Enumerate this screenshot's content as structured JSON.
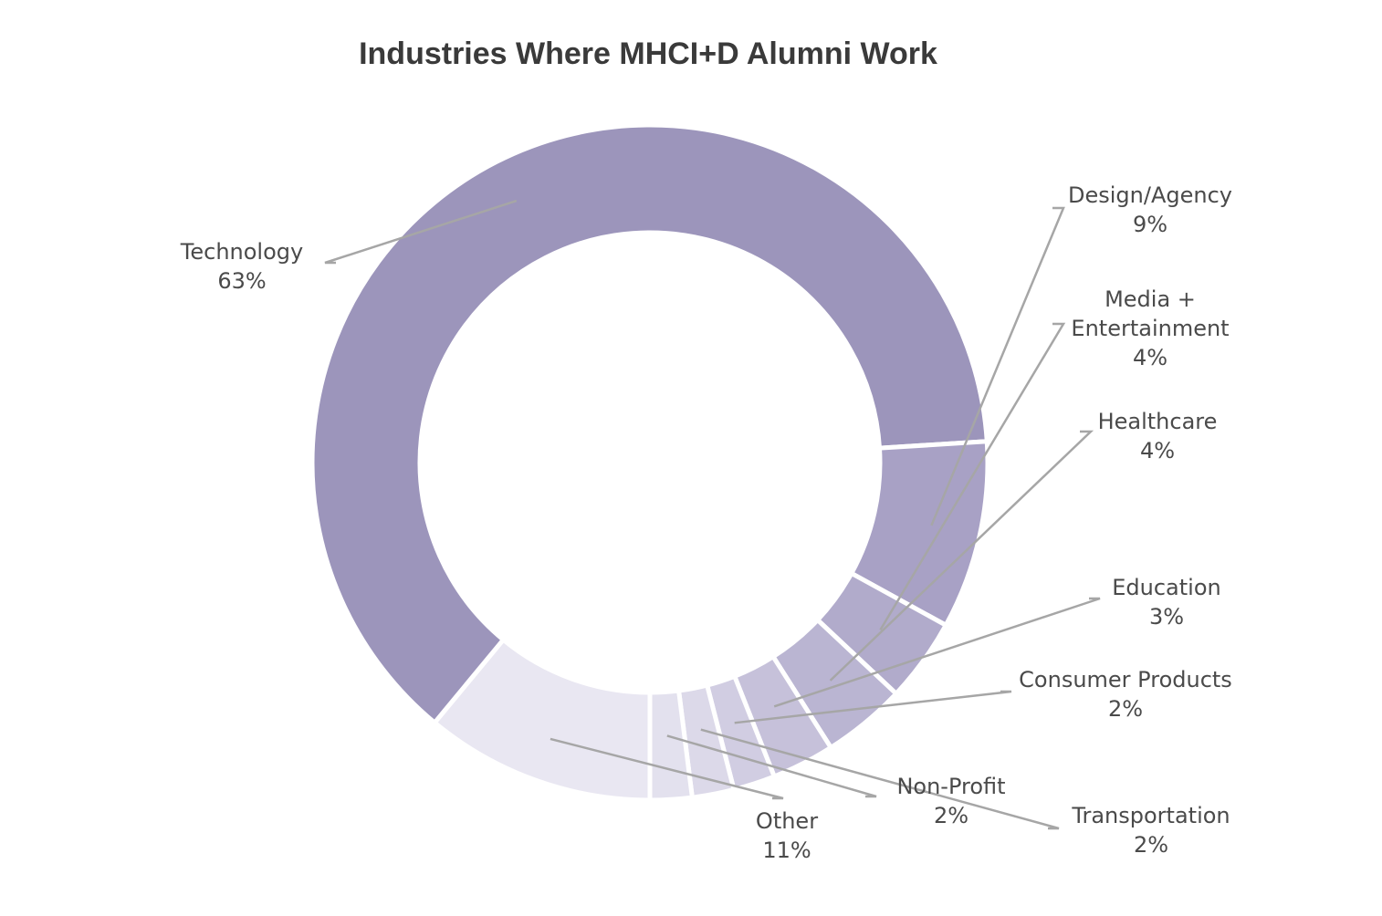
{
  "chart_data": {
    "type": "pie",
    "variant": "donut",
    "title": "Industries Where MHCI+D Alumni Work",
    "legend": "none",
    "unit": "%",
    "slices": [
      {
        "label": "Other",
        "value": 11,
        "display": "11%",
        "color": "#e9e7f2"
      },
      {
        "label": "Technology",
        "value": 63,
        "display": "63%",
        "color": "#9c95bb"
      },
      {
        "label": "Design/Agency",
        "value": 9,
        "display": "9%",
        "color": "#a8a1c5"
      },
      {
        "label": "Media + Entertainment",
        "label_lines": [
          "Media +",
          "Entertainment"
        ],
        "value": 4,
        "display": "4%",
        "color": "#b1abcb"
      },
      {
        "label": "Healthcare",
        "value": 4,
        "display": "4%",
        "color": "#bab5d2"
      },
      {
        "label": "Education",
        "value": 3,
        "display": "3%",
        "color": "#c6c1da"
      },
      {
        "label": "Consumer Products",
        "value": 2,
        "display": "2%",
        "color": "#d1cde2"
      },
      {
        "label": "Transportation",
        "value": 2,
        "display": "2%",
        "color": "#dcd9e9"
      },
      {
        "label": "Non-Profit",
        "value": 2,
        "display": "2%",
        "color": "#e3e1ee"
      }
    ]
  }
}
